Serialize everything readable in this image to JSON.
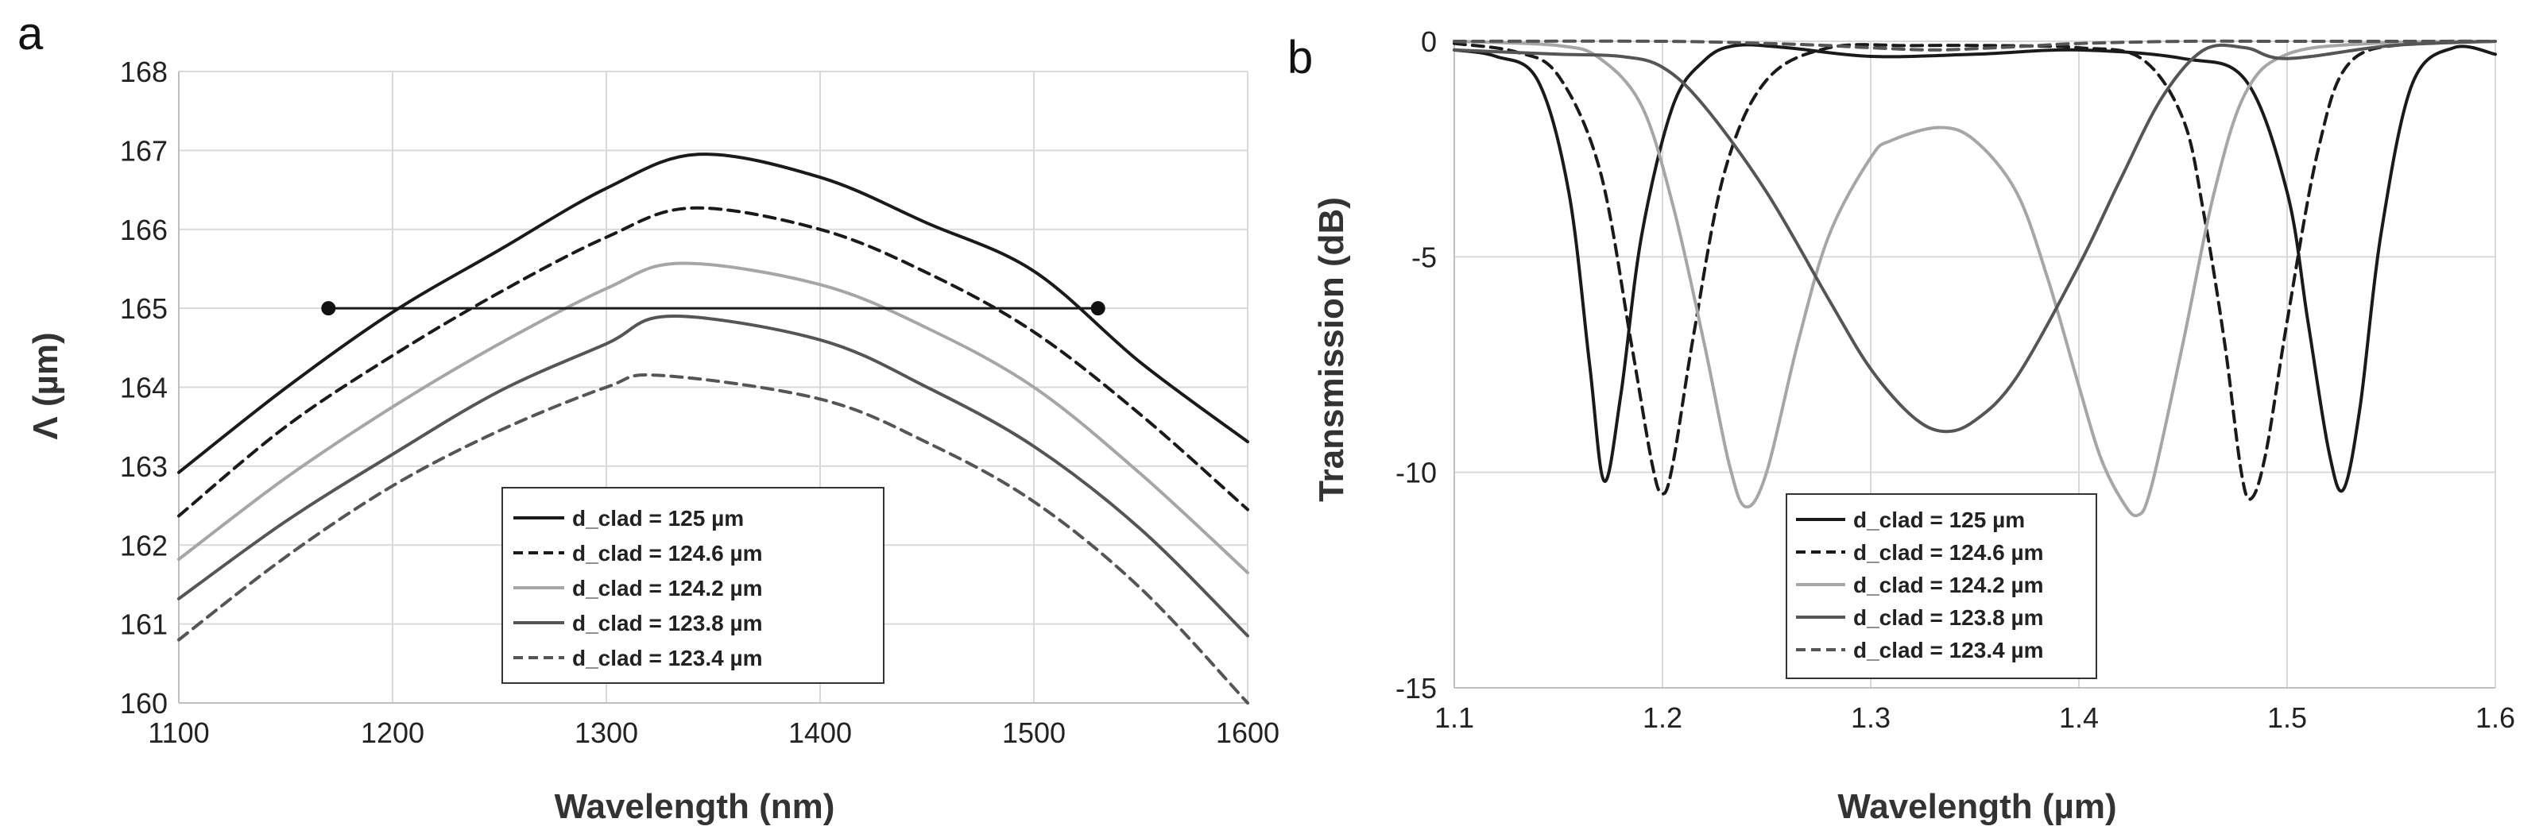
{
  "panels": {
    "a": "a",
    "b": "b"
  },
  "chart_data": [
    {
      "type": "line",
      "panel": "a",
      "xlabel": "Wavelength (nm)",
      "ylabel": "Λ (µm)",
      "xlim": [
        1100,
        1600
      ],
      "ylim": [
        160,
        168
      ],
      "xticks": [
        1100,
        1200,
        1300,
        1400,
        1500,
        1600
      ],
      "yticks": [
        160,
        161,
        162,
        163,
        164,
        165,
        166,
        167,
        168
      ],
      "legend_position": "bottom-center",
      "series": [
        {
          "name": "d_clad = 125  µm",
          "color": "#1a1a1a",
          "dash": "solid",
          "x": [
            1100,
            1150,
            1200,
            1250,
            1300,
            1343,
            1400,
            1450,
            1500,
            1550,
            1600
          ],
          "y": [
            162.92,
            163.99,
            164.95,
            165.74,
            166.52,
            166.95,
            166.66,
            166.08,
            165.47,
            164.31,
            163.31
          ]
        },
        {
          "name": "d_clad = 124.6  µm",
          "color": "#1a1a1a",
          "dash": "dashed",
          "x": [
            1100,
            1150,
            1200,
            1250,
            1300,
            1340,
            1400,
            1450,
            1500,
            1550,
            1600
          ],
          "y": [
            162.37,
            163.5,
            164.4,
            165.2,
            165.9,
            166.27,
            166.0,
            165.45,
            164.7,
            163.65,
            162.45
          ]
        },
        {
          "name": "d_clad = 124.2  µm",
          "color": "#a6a6a6",
          "dash": "solid",
          "x": [
            1100,
            1150,
            1200,
            1250,
            1300,
            1335,
            1400,
            1450,
            1500,
            1550,
            1600
          ],
          "y": [
            161.82,
            162.85,
            163.75,
            164.55,
            165.25,
            165.57,
            165.3,
            164.75,
            164.0,
            162.9,
            161.65
          ]
        },
        {
          "name": "d_clad = 123.8  µm",
          "color": "#555555",
          "dash": "solid",
          "x": [
            1100,
            1150,
            1200,
            1250,
            1300,
            1330,
            1400,
            1450,
            1500,
            1550,
            1600
          ],
          "y": [
            161.32,
            162.3,
            163.15,
            163.95,
            164.55,
            164.9,
            164.6,
            164.0,
            163.25,
            162.2,
            160.85
          ]
        },
        {
          "name": "d_clad = 123.4  µm",
          "color": "#555555",
          "dash": "dashed",
          "x": [
            1100,
            1150,
            1200,
            1250,
            1300,
            1325,
            1400,
            1450,
            1500,
            1550,
            1600
          ],
          "y": [
            160.8,
            161.85,
            162.75,
            163.45,
            164.0,
            164.15,
            163.85,
            163.3,
            162.55,
            161.45,
            160.0
          ]
        }
      ],
      "annotations": {
        "horizontal_line": {
          "y": 165.0,
          "x_start": 1170,
          "x_end": 1530
        },
        "points": [
          {
            "x": 1170,
            "y": 165.0
          },
          {
            "x": 1530,
            "y": 165.0
          }
        ]
      }
    },
    {
      "type": "line",
      "panel": "b",
      "xlabel": "Wavelength (µm)",
      "ylabel": "Transmission (dB)",
      "xlim": [
        1.1,
        1.6
      ],
      "ylim": [
        -15,
        0
      ],
      "xticks": [
        "1.1",
        "1.2",
        "1.3",
        "1.4",
        "1.5",
        "1.6"
      ],
      "yticks": [
        "0",
        "-5",
        "-10",
        "-15"
      ],
      "legend_position": "bottom-center",
      "series": [
        {
          "name": "d_clad = 125  µm",
          "color": "#1a1a1a",
          "dash": "solid",
          "x": [
            1.1,
            1.12,
            1.14,
            1.155,
            1.165,
            1.172,
            1.18,
            1.19,
            1.205,
            1.22,
            1.235,
            1.26,
            1.3,
            1.35,
            1.4,
            1.45,
            1.48,
            1.5,
            1.51,
            1.52,
            1.527,
            1.535,
            1.545,
            1.56,
            1.58,
            1.6
          ],
          "y": [
            -0.2,
            -0.35,
            -0.9,
            -3.5,
            -7.5,
            -10.2,
            -8.2,
            -4.5,
            -1.5,
            -0.45,
            -0.1,
            -0.15,
            -0.35,
            -0.3,
            -0.2,
            -0.4,
            -0.9,
            -3.5,
            -6.5,
            -9.5,
            -10.4,
            -8.5,
            -4.5,
            -1.0,
            -0.15,
            -0.3
          ]
        },
        {
          "name": "d_clad = 124.6  µm",
          "color": "#1a1a1a",
          "dash": "dashed",
          "x": [
            1.1,
            1.13,
            1.15,
            1.17,
            1.185,
            1.195,
            1.2,
            1.205,
            1.215,
            1.23,
            1.25,
            1.28,
            1.32,
            1.36,
            1.4,
            1.43,
            1.45,
            1.46,
            1.47,
            1.478,
            1.483,
            1.49,
            1.5,
            1.515,
            1.53,
            1.56,
            1.6
          ],
          "y": [
            -0.05,
            -0.25,
            -0.8,
            -3.0,
            -7.0,
            -9.8,
            -10.5,
            -9.8,
            -6.8,
            -3.0,
            -0.9,
            -0.15,
            -0.1,
            -0.1,
            -0.15,
            -0.4,
            -1.8,
            -4.0,
            -7.0,
            -10.0,
            -10.6,
            -9.5,
            -6.5,
            -2.5,
            -0.5,
            -0.05,
            0
          ]
        },
        {
          "name": "d_clad = 124.2  µm",
          "color": "#a6a6a6",
          "dash": "solid",
          "x": [
            1.1,
            1.15,
            1.17,
            1.19,
            1.205,
            1.22,
            1.232,
            1.24,
            1.25,
            1.265,
            1.28,
            1.3,
            1.31,
            1.333,
            1.35,
            1.37,
            1.385,
            1.4,
            1.41,
            1.42,
            1.428,
            1.435,
            1.45,
            1.465,
            1.48,
            1.5,
            1.54,
            1.6
          ],
          "y": [
            0,
            -0.1,
            -0.4,
            -1.5,
            -3.8,
            -7.0,
            -9.8,
            -10.8,
            -10.0,
            -7.0,
            -4.5,
            -2.7,
            -2.3,
            -2.0,
            -2.3,
            -3.5,
            -5.5,
            -8.0,
            -9.6,
            -10.6,
            -11.0,
            -10.3,
            -7.0,
            -3.5,
            -1.2,
            -0.3,
            -0.05,
            0
          ]
        },
        {
          "name": "d_clad = 123.8  µm",
          "color": "#555555",
          "dash": "solid",
          "x": [
            1.1,
            1.15,
            1.18,
            1.2,
            1.22,
            1.25,
            1.28,
            1.3,
            1.32,
            1.335,
            1.35,
            1.37,
            1.4,
            1.42,
            1.44,
            1.46,
            1.48,
            1.5,
            1.55,
            1.6
          ],
          "y": [
            -0.2,
            -0.3,
            -0.35,
            -0.6,
            -1.5,
            -3.5,
            -6.0,
            -7.6,
            -8.7,
            -9.05,
            -8.8,
            -7.8,
            -5.2,
            -3.2,
            -1.3,
            -0.2,
            -0.15,
            -0.4,
            -0.1,
            0
          ]
        },
        {
          "name": "d_clad = 123.4  µm",
          "color": "#555555",
          "dash": "dashed",
          "x": [
            1.1,
            1.2,
            1.25,
            1.28,
            1.3,
            1.33,
            1.36,
            1.38,
            1.4,
            1.45,
            1.5,
            1.6
          ],
          "y": [
            0,
            0,
            -0.05,
            -0.1,
            -0.15,
            -0.2,
            -0.15,
            -0.1,
            -0.05,
            0,
            0,
            0
          ]
        }
      ]
    }
  ]
}
